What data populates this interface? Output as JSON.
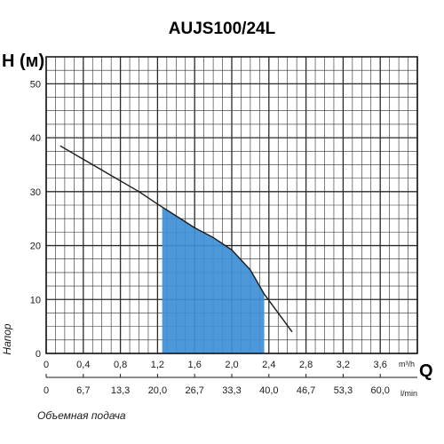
{
  "chart_data": {
    "type": "line",
    "title": "AUJS100/24L",
    "ylabel": "H (м)",
    "y_side_label": "Напор",
    "xlabel": "Q",
    "x_unit": "m³/h",
    "x2_unit": "l/min",
    "x2_caption": "Объемная подача",
    "xlim": [
      0,
      4.0
    ],
    "ylim": [
      0,
      55
    ],
    "x_ticks": [
      "0",
      "0,4",
      "0,8",
      "1,2",
      "1,6",
      "2,0",
      "2,4",
      "2,8",
      "3,2",
      "3,6"
    ],
    "x2_ticks": [
      "0",
      "6,7",
      "13,3",
      "20,0",
      "26,7",
      "33,3",
      "40,0",
      "46,7",
      "53,3",
      "60,0"
    ],
    "y_ticks": [
      "0",
      "10",
      "20",
      "30",
      "40",
      "50"
    ],
    "grid": true,
    "series": [
      {
        "x": [
          0.15,
          0.4,
          0.6,
          0.8,
          1.0,
          1.2,
          1.4,
          1.6,
          1.8,
          2.0,
          2.2,
          2.35,
          2.5,
          2.65
        ],
        "y": [
          38.5,
          36.0,
          34.0,
          32.0,
          30.0,
          27.7,
          25.5,
          23.3,
          21.5,
          19.2,
          15.5,
          11.0,
          7.5,
          4.0
        ]
      }
    ],
    "shaded_range": [
      1.25,
      2.35
    ],
    "colors": {
      "curve": "#1a1a1a",
      "fill": "#3d8fd6",
      "grid": "#2a2a2a"
    }
  }
}
